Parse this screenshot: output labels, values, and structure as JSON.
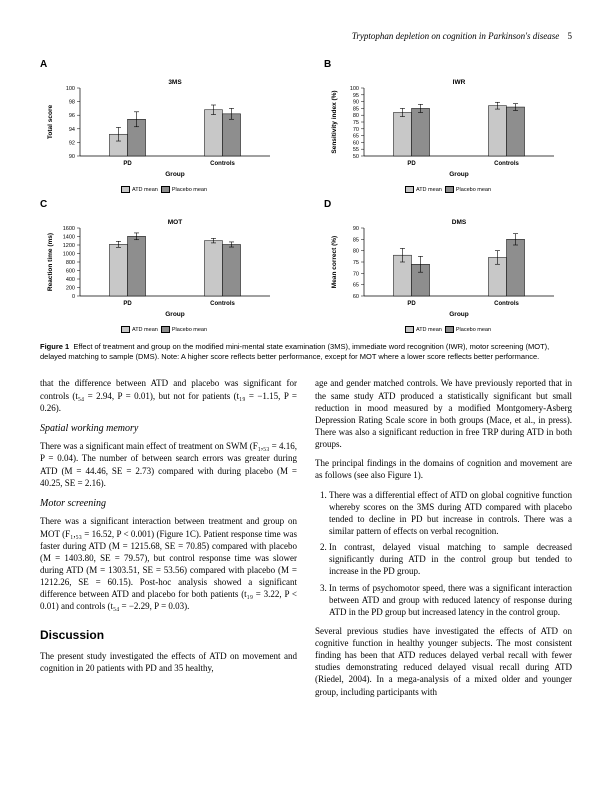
{
  "running_head": {
    "title": "Tryptophan depletion on cognition in Parkinson's disease",
    "page": "5"
  },
  "figure": {
    "panels": [
      {
        "label": "A",
        "title": "3MS",
        "ylabel": "Total score",
        "ylim": [
          90,
          100
        ],
        "yticks": [
          90,
          92,
          94,
          96,
          98,
          100
        ],
        "categories": [
          "PD",
          "Controls"
        ],
        "series": [
          {
            "name": "ATD mean",
            "color": "#c8c8c8",
            "values": [
              93.2,
              96.8
            ],
            "err": [
              1.0,
              0.7
            ]
          },
          {
            "name": "Placebo mean",
            "color": "#8e8e8e",
            "values": [
              95.4,
              96.2
            ],
            "err": [
              1.1,
              0.8
            ]
          }
        ],
        "xlabel": "Group",
        "bar_width": 0.38
      },
      {
        "label": "B",
        "title": "IWR",
        "ylabel": "Sensitivity index (%)",
        "ylim": [
          50,
          100
        ],
        "yticks": [
          50,
          55,
          60,
          65,
          70,
          75,
          80,
          85,
          90,
          95,
          100
        ],
        "categories": [
          "PD",
          "Controls"
        ],
        "series": [
          {
            "name": "ATD mean",
            "color": "#c8c8c8",
            "values": [
              82,
              87
            ],
            "err": [
              3,
              2.5
            ]
          },
          {
            "name": "Placebo mean",
            "color": "#8e8e8e",
            "values": [
              85,
              86
            ],
            "err": [
              3,
              2.5
            ]
          }
        ],
        "xlabel": "Group",
        "bar_width": 0.38
      },
      {
        "label": "C",
        "title": "MOT",
        "ylabel": "Reaction time (ms)",
        "ylim": [
          0,
          1600
        ],
        "yticks": [
          0,
          200,
          400,
          600,
          800,
          1000,
          1200,
          1400,
          1600
        ],
        "categories": [
          "PD",
          "Controls"
        ],
        "series": [
          {
            "name": "ATD mean",
            "color": "#c8c8c8",
            "values": [
              1216,
              1303
            ],
            "err": [
              71,
              54
            ]
          },
          {
            "name": "Placebo mean",
            "color": "#8e8e8e",
            "values": [
              1404,
              1212
            ],
            "err": [
              80,
              60
            ]
          }
        ],
        "xlabel": "Group",
        "bar_width": 0.38
      },
      {
        "label": "D",
        "title": "DMS",
        "ylabel": "Mean correct (%)",
        "ylim": [
          60,
          90
        ],
        "yticks": [
          60,
          65,
          70,
          75,
          80,
          85,
          90
        ],
        "categories": [
          "PD",
          "Controls"
        ],
        "series": [
          {
            "name": "ATD mean",
            "color": "#c8c8c8",
            "values": [
              78,
              77
            ],
            "err": [
              3,
              3
            ]
          },
          {
            "name": "Placebo mean",
            "color": "#8e8e8e",
            "values": [
              74,
              85
            ],
            "err": [
              3.5,
              2.5
            ]
          }
        ],
        "xlabel": "Group",
        "bar_width": 0.38
      }
    ],
    "legend_items": [
      "ATD mean",
      "Placebo mean"
    ],
    "caption_label": "Figure 1",
    "caption": "Effect of treatment and group on the modified mini-mental state examination (3MS), immediate word recognition (IWR), motor screening (MOT), delayed matching to sample (DMS). Note: A higher score reflects better performance, except for MOT where a lower score reflects better performance."
  },
  "body": {
    "p1": "that the difference between ATD and placebo was significant for controls (t₅₄ = 2.94, P = 0.01), but not for patients (t₁₉ = −1.15, P = 0.26).",
    "h_swm": "Spatial working memory",
    "p_swm": "There was a significant main effect of treatment on SWM (F₁,₅₃ = 4.16, P = 0.04). The number of between search errors was greater during ATD (M = 44.46, SE = 2.73) compared with during placebo (M = 40.25, SE = 2.16).",
    "h_mot": "Motor screening",
    "p_mot": "There was a significant interaction between treatment and group on MOT (F₁,₅₃ = 16.52, P < 0.001) (Figure 1C). Patient response time was faster during ATD (M = 1215.68, SE = 70.85) compared with placebo (M = 1403.80, SE = 79.57), but control response time was slower during ATD (M = 1303.51, SE = 53.56) compared with placebo (M = 1212.26, SE = 60.15). Post-hoc analysis showed a significant difference between ATD and placebo for both patients (t₁₉ = 3.22, P < 0.01) and controls (t₅₄ = −2.29, P = 0.03).",
    "h_disc": "Discussion",
    "p_disc1": "The present study investigated the effects of ATD on movement and cognition in 20 patients with PD and 35 healthy,",
    "p_disc2": "age and gender matched controls. We have previously reported that in the same study ATD produced a statistically significant but small reduction in mood measured by a modified Montgomery-Asberg Depression Rating Scale score in both groups (Mace, et al., in press). There was also a significant reduction in free TRP during ATD in both groups.",
    "p_findings_intro": "The principal findings in the domains of cognition and movement are as follows (see also Figure 1).",
    "findings": [
      "There was a differential effect of ATD on global cognitive function whereby scores on the 3MS during ATD compared with placebo tended to decline in PD but increase in controls. There was a similar pattern of effects on verbal recognition.",
      "In contrast, delayed visual matching to sample decreased significantly during ATD in the control group but tended to increase in the PD group.",
      "In terms of psychomotor speed, there was a significant interaction between ATD and group with reduced latency of response during ATD in the PD group but increased latency in the control group."
    ],
    "p_disc3": "Several previous studies have investigated the effects of ATD on cognitive function in healthy younger subjects. The most consistent finding has been that ATD reduces delayed verbal recall with fewer studies demonstrating reduced delayed visual recall during ATD (Riedel, 2004). In a mega-analysis of a mixed older and younger group, including participants with"
  }
}
